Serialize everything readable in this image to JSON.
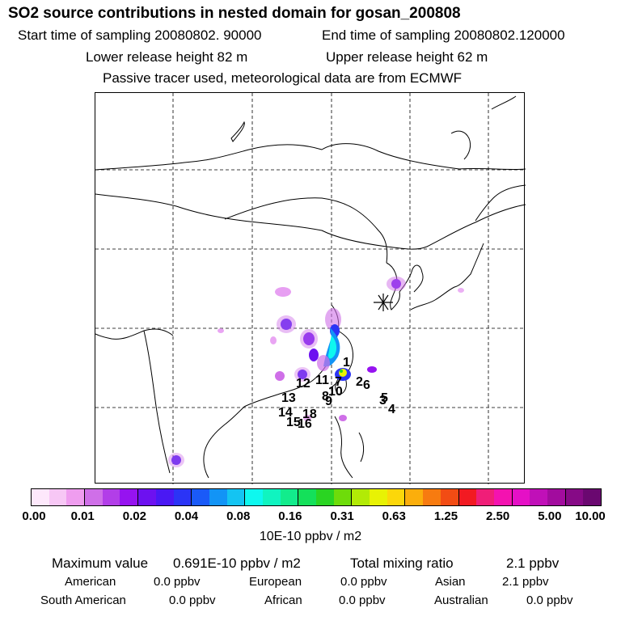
{
  "header": {
    "title": "SO2 source contributions in nested domain for gosan_200808",
    "start_label": "Start time of sampling 20080802. 90000",
    "end_label": "End time of sampling 20080802.120000",
    "lower_label": "Lower release height   82 m",
    "upper_label": "Upper release height   62 m",
    "tracer_note": "Passive tracer used, meteorological data are from ECMWF"
  },
  "map": {
    "gridlines": true,
    "receptor_marker": "asterisk",
    "source_labels": [
      "1",
      "2",
      "3",
      "4",
      "5",
      "6",
      "7",
      "8",
      "9",
      "10",
      "11",
      "12",
      "13",
      "14",
      "15",
      "16",
      "18"
    ]
  },
  "colorbar": {
    "colors": [
      "#fde8fb",
      "#f7c7f5",
      "#ef9def",
      "#cf6fe8",
      "#b23ee8",
      "#9613f0",
      "#6d11f0",
      "#4a18f4",
      "#2b34f6",
      "#1a5af8",
      "#1294f6",
      "#14c4f2",
      "#0ef8ef",
      "#10f4c0",
      "#12ec8c",
      "#14e05a",
      "#2ad422",
      "#6edc0a",
      "#b2ea06",
      "#e8f204",
      "#fcd70a",
      "#fbae0c",
      "#f77b10",
      "#f24c14",
      "#f21a22",
      "#f01e78",
      "#f412b0",
      "#e510c6",
      "#c010b8",
      "#a20c9e",
      "#860a86",
      "#6a0870"
    ],
    "ticks": [
      "0.00",
      "0.01",
      "0.02",
      "0.04",
      "0.08",
      "0.16",
      "0.31",
      "0.63",
      "1.25",
      "2.50",
      "5.00",
      "10.00"
    ],
    "unit_label": "10E-10 ppbv / m2"
  },
  "stats": {
    "max_label": "Maximum value",
    "max_value": "0.691E-10 ppbv / m2",
    "total_label": "Total mixing ratio",
    "total_value": "2.1 ppbv"
  },
  "regions": {
    "american_label": "American",
    "american_value": "0.0 ppbv",
    "european_label": "European",
    "european_value": "0.0 ppbv",
    "asian_label": "Asian",
    "asian_value": "2.1 ppbv",
    "south_american_label": "South American",
    "south_american_value": "0.0 ppbv",
    "african_label": "African",
    "african_value": "0.0 ppbv",
    "australian_label": "Australian",
    "australian_value": "0.0 ppbv"
  }
}
